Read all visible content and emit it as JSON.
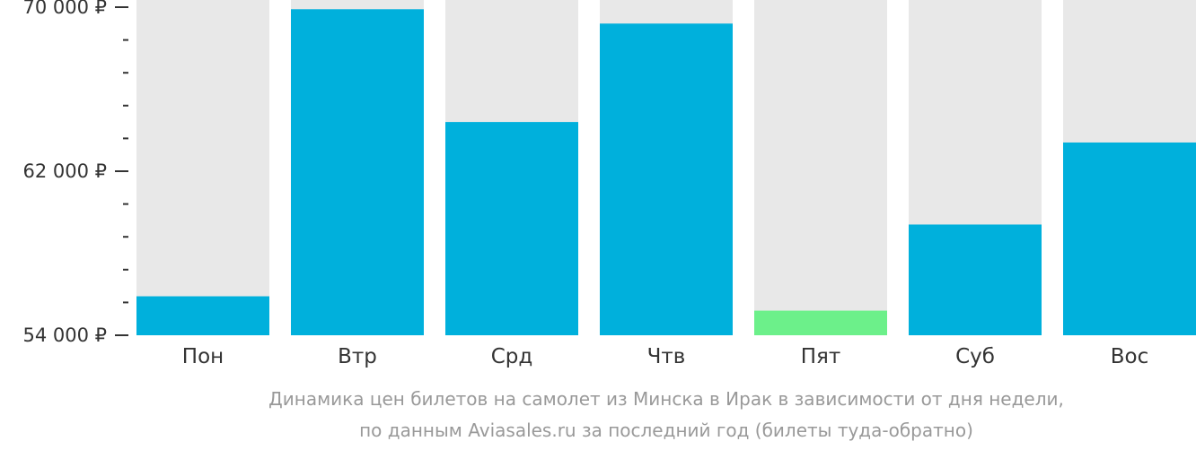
{
  "chart_data": {
    "type": "bar",
    "categories": [
      "Пон",
      "Втр",
      "Срд",
      "Чтв",
      "Пят",
      "Суб",
      "Вос"
    ],
    "values": [
      55900,
      69900,
      64400,
      69200,
      55200,
      59400,
      63400
    ],
    "ylim": [
      54000,
      70000
    ],
    "y_tick_labels": [
      "70 000 ₽",
      "62 000 ₽",
      "54 000 ₽"
    ],
    "y_tick_values": [
      70000,
      62000,
      54000
    ],
    "grid": false,
    "legend": "none",
    "caption": [
      "Динамика цен билетов на самолет из Минска в Ирак в зависимости от дня недели,",
      "по данным Aviasales.ru за последний год (билеты туда-обратно)"
    ],
    "highlight_index": 4,
    "colors": {
      "bar": "#00b0dc",
      "bar_highlight": "#6cf08a",
      "background_bar": "#e8e8e8",
      "axis": "#333333",
      "caption": "#999999"
    }
  }
}
